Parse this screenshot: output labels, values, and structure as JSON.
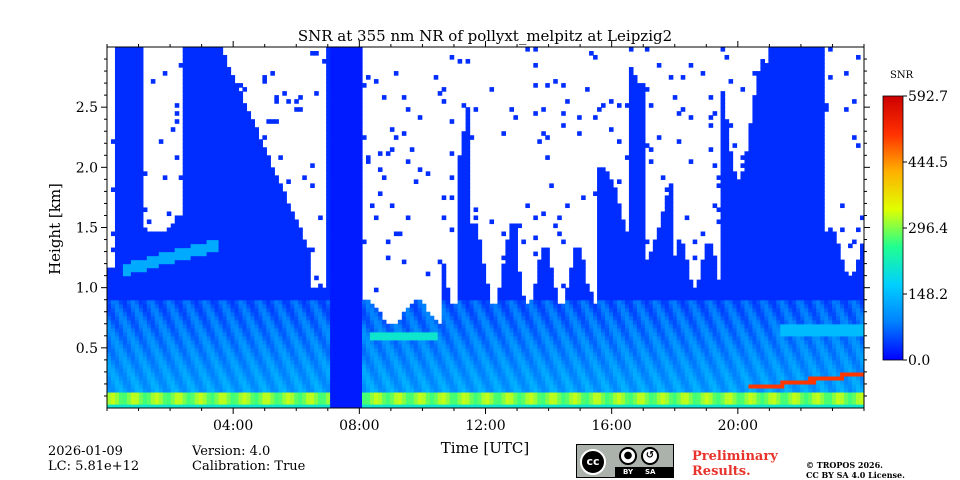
{
  "chart_data": {
    "type": "heatmap",
    "title": "SNR at 355 nm NR of pollyxt_melpitz at Leipzig2",
    "xlabel": "Time [UTC]",
    "ylabel": "Height [km]",
    "xlim": [
      0,
      24
    ],
    "ylim": [
      0.0,
      3.0
    ],
    "x_ticks": [
      {
        "value": 4,
        "label": "04:00"
      },
      {
        "value": 8,
        "label": "08:00"
      },
      {
        "value": 12,
        "label": "12:00"
      },
      {
        "value": 16,
        "label": "16:00"
      },
      {
        "value": 20,
        "label": "20:00"
      }
    ],
    "y_ticks": [
      {
        "value": 0.5,
        "label": "0.5"
      },
      {
        "value": 1.0,
        "label": "1.0"
      },
      {
        "value": 1.5,
        "label": "1.5"
      },
      {
        "value": 2.0,
        "label": "2.0"
      },
      {
        "value": 2.5,
        "label": "2.5"
      }
    ],
    "colorbar": {
      "label": "SNR",
      "min": 0.0,
      "max": 592.7,
      "ticks": [
        "0.0",
        "148.2",
        "296.4",
        "444.5",
        "592.7"
      ],
      "colormap": [
        "#0000ff",
        "#0080ff",
        "#00d0ff",
        "#20ff90",
        "#e0ff00",
        "#ffb000",
        "#ff3000",
        "#cc0000"
      ]
    },
    "features": {
      "near_surface_layer": {
        "height_km": [
          0.0,
          0.12
        ],
        "snr_approx": 296
      },
      "boundary_layer_signal": {
        "height_km": [
          0.12,
          1.0
        ],
        "snr_approx": 100
      },
      "elevated_layer_early": {
        "time_h": [
          0.5,
          3.5
        ],
        "height_km": [
          1.1,
          1.4
        ]
      },
      "residual_layer_morning": {
        "time_h": [
          8.3,
          10.5
        ],
        "height_km": [
          0.55,
          0.65
        ]
      },
      "residual_layer_night": {
        "time_h": [
          21.3,
          24.0
        ],
        "height_km": [
          0.6,
          0.7
        ]
      },
      "high_snr_rise": {
        "time_h": [
          20.0,
          24.0
        ],
        "height_km": [
          0.15,
          0.3
        ],
        "snr_approx": 520
      }
    }
  },
  "footer": {
    "date": "2026-01-09",
    "lc": "LC: 5.81e+12",
    "version": "Version: 4.0",
    "calibration": "Calibration: True",
    "prelim_line1": "Preliminary",
    "prelim_line2": "Results.",
    "copyright_line1": "© TROPOS 2026.",
    "copyright_line2": "CC BY SA 4.0 License.",
    "license_badge": {
      "cc": "cc",
      "by": "BY",
      "sa": "SA"
    },
    "prelim_color": "#e8332c"
  }
}
